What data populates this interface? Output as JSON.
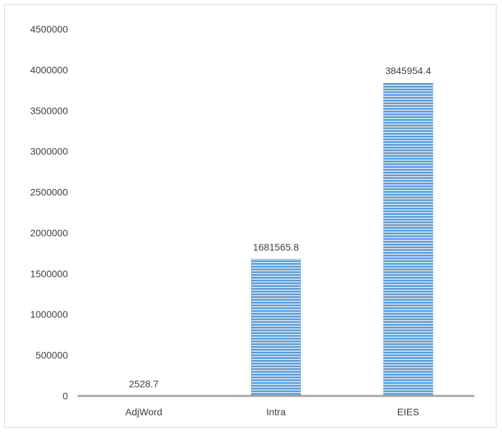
{
  "chart_data": {
    "type": "bar",
    "categories": [
      "AdjWord",
      "Intra",
      "EIES"
    ],
    "values": [
      2528.7,
      1681565.8,
      3845954.4
    ],
    "data_labels": [
      "2528.7",
      "1681565.8",
      "3845954.4"
    ],
    "title": "",
    "xlabel": "",
    "ylabel": "",
    "ylim": [
      0,
      4500000
    ],
    "yticks": [
      0,
      500000,
      1000000,
      1500000,
      2000000,
      2500000,
      3000000,
      3500000,
      4000000,
      4500000
    ],
    "ytick_labels": [
      "0",
      "500000",
      "1000000",
      "1500000",
      "2000000",
      "2500000",
      "3000000",
      "3500000",
      "4000000",
      "4500000"
    ],
    "grid": false,
    "legend": "none",
    "bar_color": "#5b9bd5",
    "bar_stripe_color": "#ffffff",
    "axis_color": "#a6a6a6",
    "text_color": "#404040"
  }
}
